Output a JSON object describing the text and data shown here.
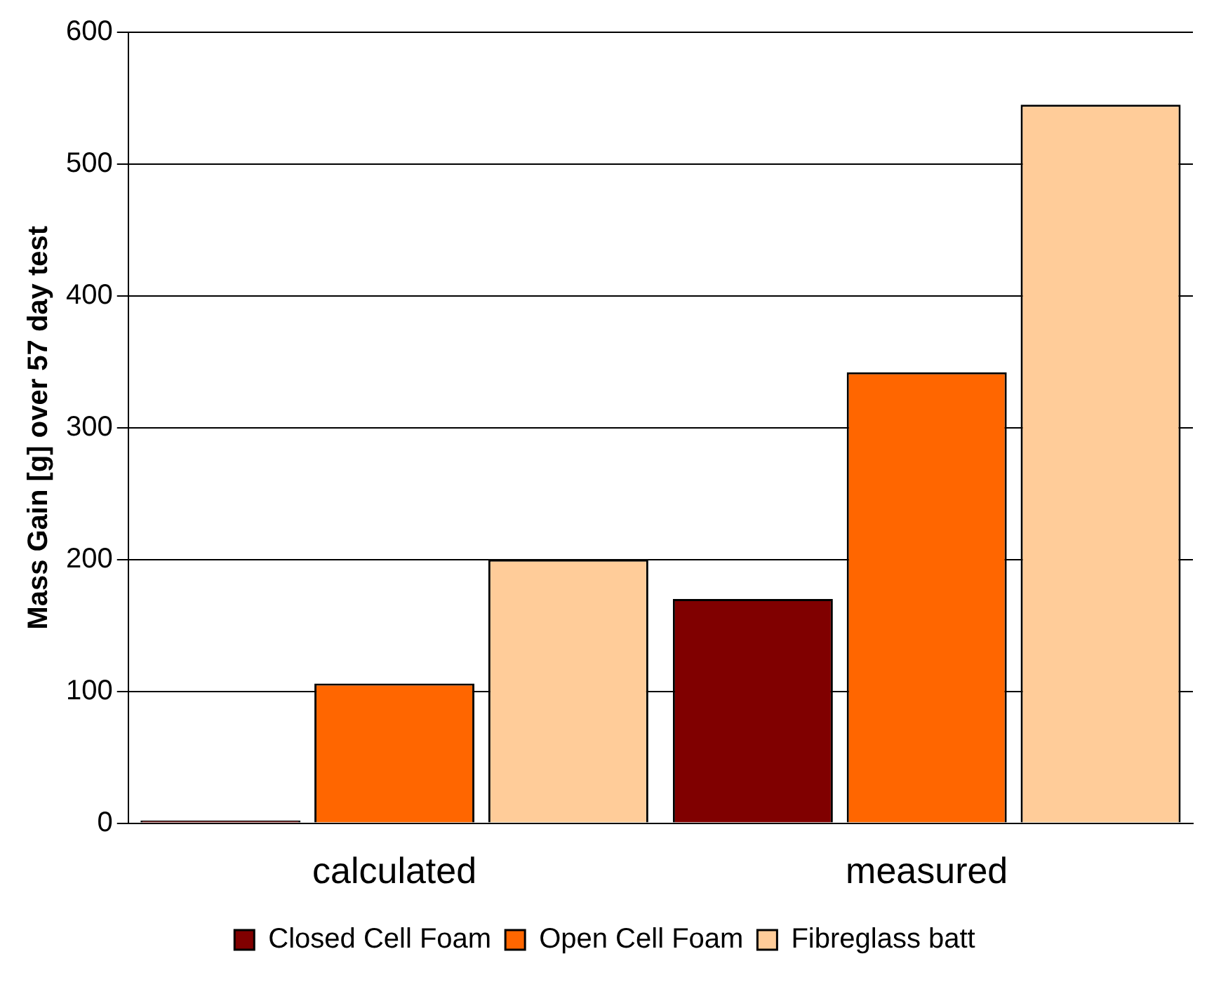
{
  "chart_data": {
    "type": "bar",
    "ylabel": "Mass Gain [g] over 57 day test",
    "categories": [
      "calculated",
      "measured"
    ],
    "series": [
      {
        "name": "Closed Cell Foam",
        "color": "#800000",
        "values": [
          2,
          170
        ]
      },
      {
        "name": "Open Cell Foam",
        "color": "#ff6600",
        "values": [
          106,
          342
        ]
      },
      {
        "name": "Fibreglass batt",
        "color": "#ffcc99",
        "values": [
          200,
          545
        ]
      }
    ],
    "ylim": [
      0,
      600
    ],
    "yticks": [
      0,
      100,
      200,
      300,
      400,
      500,
      600
    ],
    "grid": "y",
    "legend": "bottom"
  }
}
